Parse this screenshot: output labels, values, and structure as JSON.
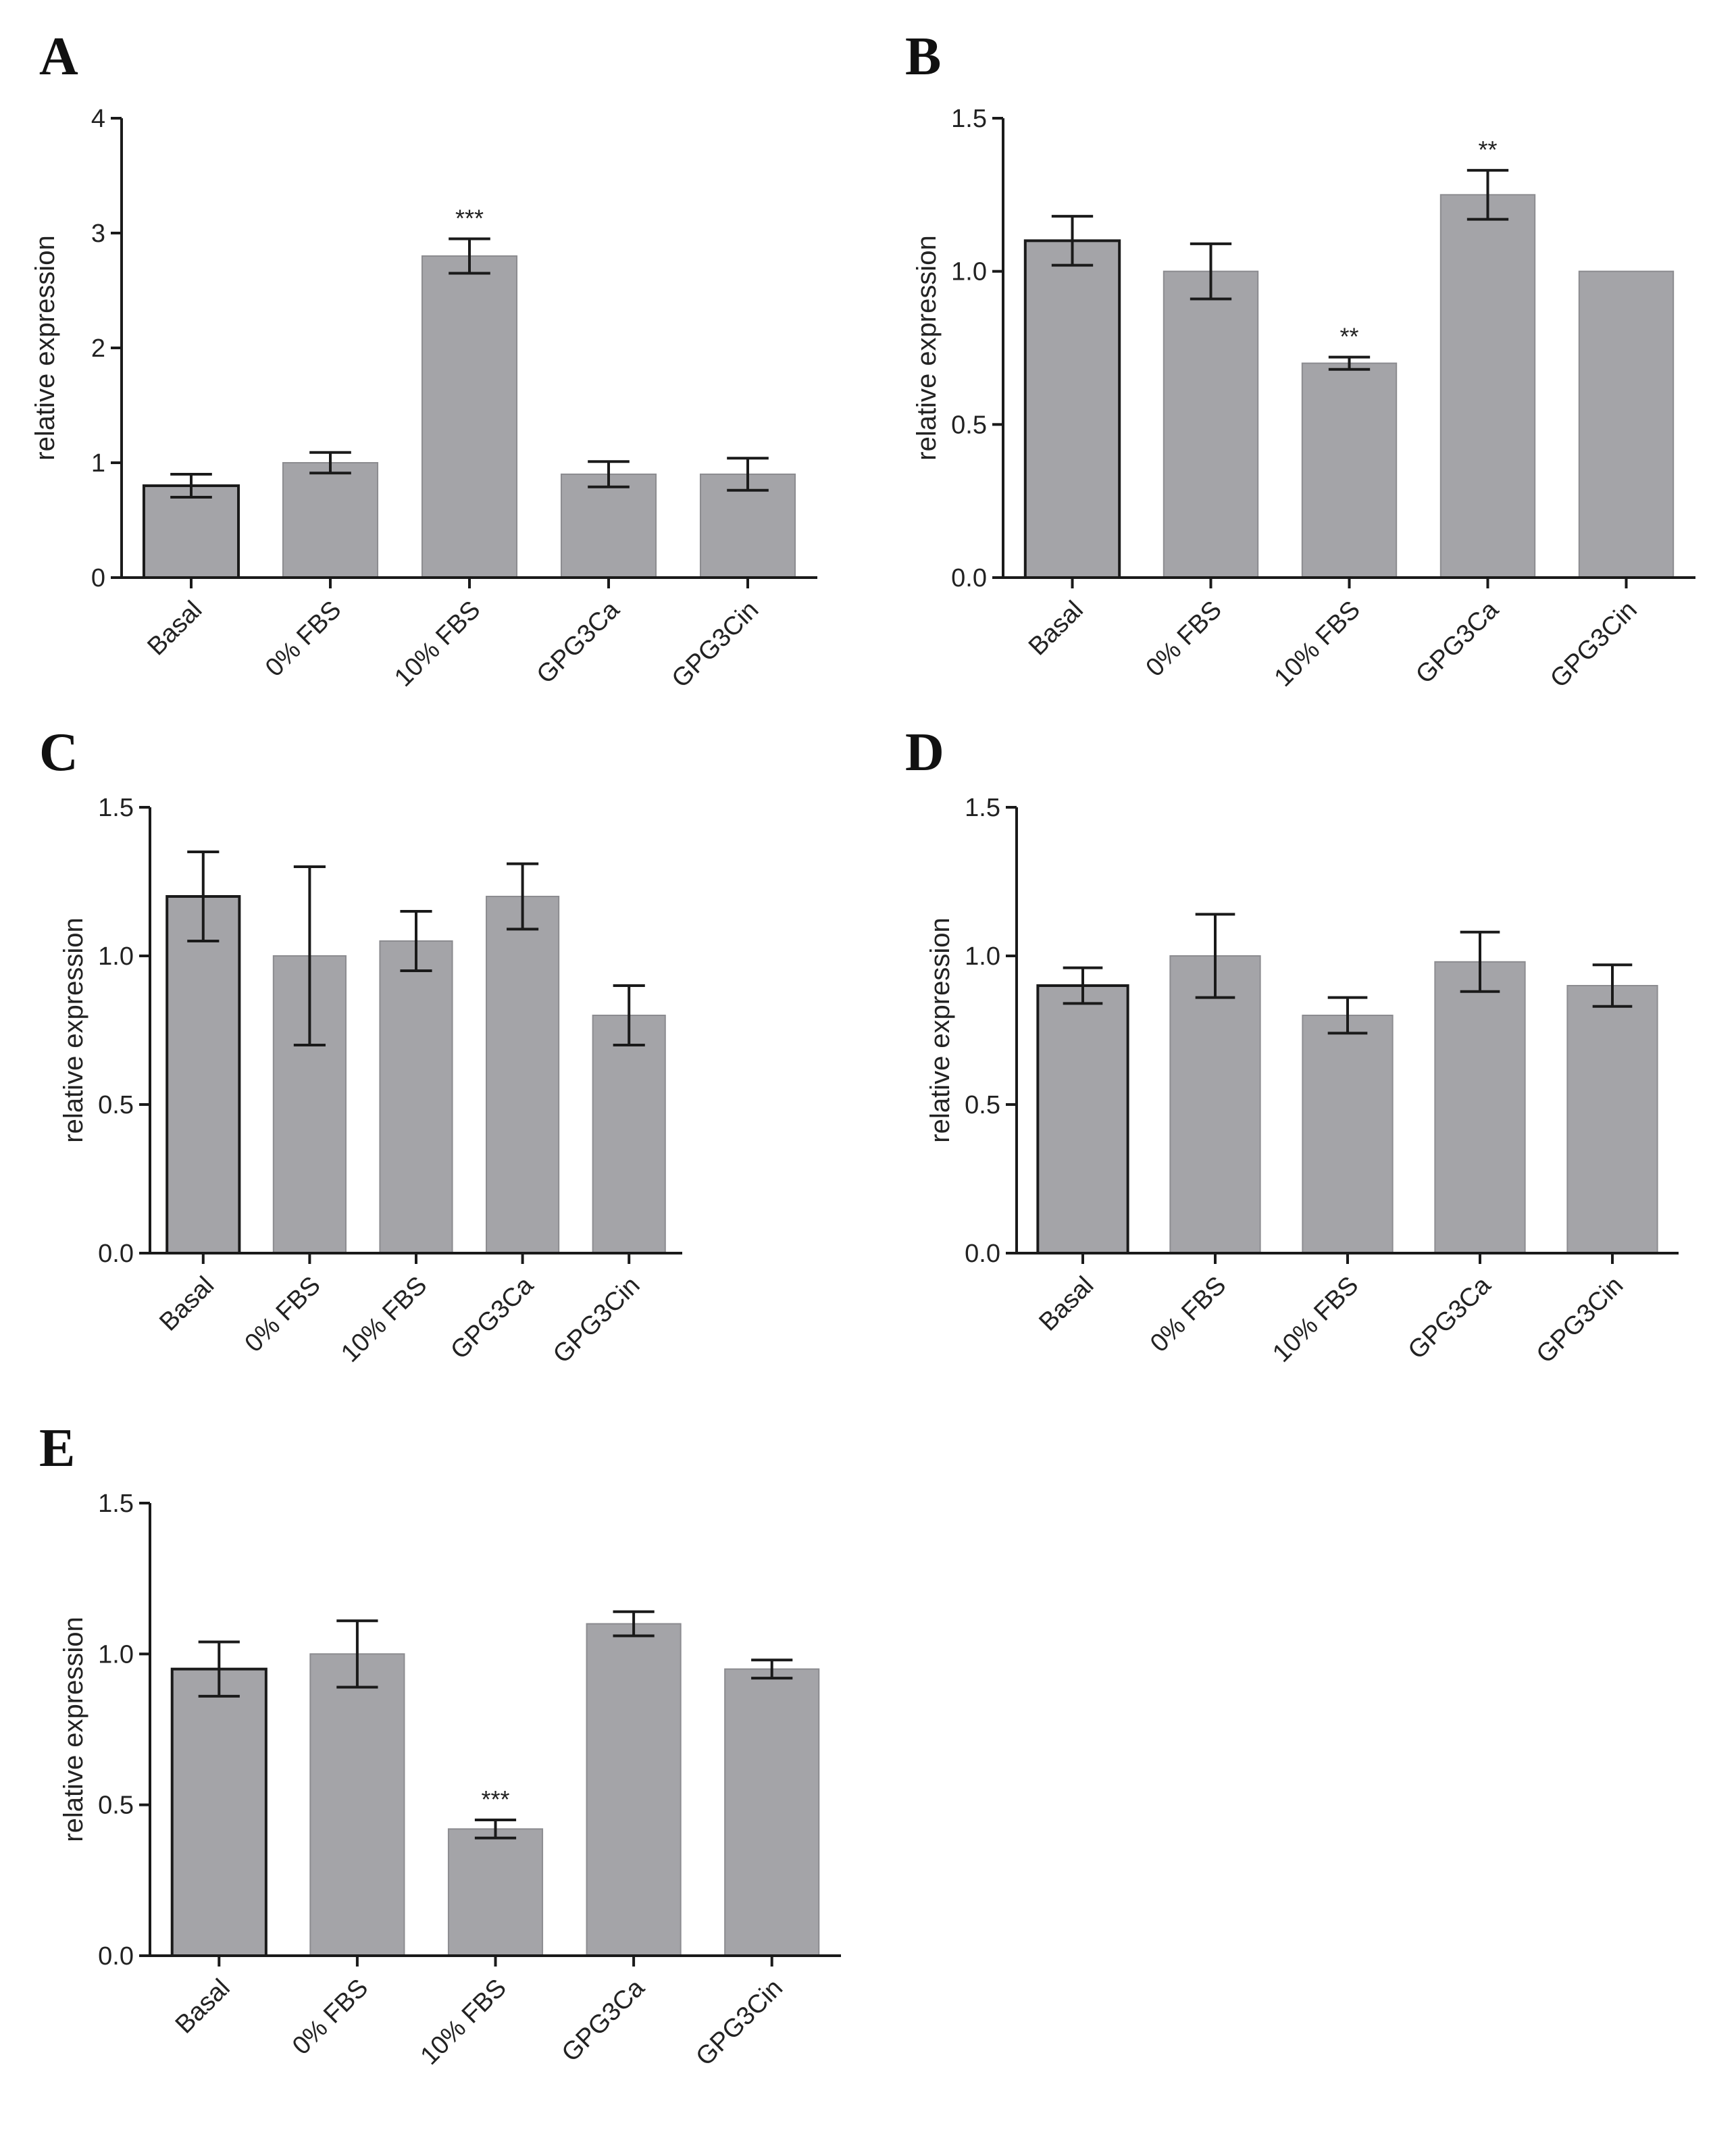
{
  "chart_data": [
    {
      "panel": "A",
      "type": "bar",
      "categories": [
        "Basal",
        "0% FBS",
        "10% FBS",
        "GPG3Ca",
        "GPG3Cin"
      ],
      "values": [
        0.8,
        1.0,
        2.8,
        0.9,
        0.9
      ],
      "errors": [
        0.1,
        0.09,
        0.15,
        0.11,
        0.14
      ],
      "annotations": [
        "",
        "",
        "***",
        "",
        ""
      ],
      "ylabel": "relative expression",
      "ylim": [
        0,
        4
      ],
      "yticks": [
        "0",
        "1",
        "2",
        "3",
        "4"
      ],
      "ytick_values": [
        0,
        1,
        2,
        3,
        4
      ]
    },
    {
      "panel": "B",
      "type": "bar",
      "categories": [
        "Basal",
        "0% FBS",
        "10% FBS",
        "GPG3Ca",
        "GPG3Cin"
      ],
      "values": [
        1.1,
        1.0,
        0.7,
        1.25,
        1.0
      ],
      "errors": [
        0.08,
        0.09,
        0.02,
        0.08,
        0
      ],
      "annotations": [
        "",
        "",
        "**",
        "**",
        ""
      ],
      "ylabel": "relative expression",
      "ylim": [
        0,
        1.5
      ],
      "yticks": [
        "0.0",
        "0.5",
        "1.0",
        "1.5"
      ],
      "ytick_values": [
        0,
        0.5,
        1.0,
        1.5
      ]
    },
    {
      "panel": "C",
      "type": "bar",
      "categories": [
        "Basal",
        "0% FBS",
        "10% FBS",
        "GPG3Ca",
        "GPG3Cin"
      ],
      "values": [
        1.2,
        1.0,
        1.05,
        1.2,
        0.8
      ],
      "errors": [
        0.15,
        0.3,
        0.1,
        0.11,
        0.1
      ],
      "annotations": [
        "",
        "",
        "",
        "",
        ""
      ],
      "ylabel": "relative expression",
      "ylim": [
        0,
        1.5
      ],
      "yticks": [
        "0.0",
        "0.5",
        "1.0",
        "1.5"
      ],
      "ytick_values": [
        0,
        0.5,
        1.0,
        1.5
      ]
    },
    {
      "panel": "D",
      "type": "bar",
      "categories": [
        "Basal",
        "0% FBS",
        "10% FBS",
        "GPG3Ca",
        "GPG3Cin"
      ],
      "values": [
        0.9,
        1.0,
        0.8,
        0.98,
        0.9
      ],
      "errors": [
        0.06,
        0.14,
        0.06,
        0.1,
        0.07
      ],
      "annotations": [
        "",
        "",
        "",
        "",
        ""
      ],
      "ylabel": "relative expression",
      "ylim": [
        0,
        1.5
      ],
      "yticks": [
        "0.0",
        "0.5",
        "1.0",
        "1.5"
      ],
      "ytick_values": [
        0,
        0.5,
        1.0,
        1.5
      ]
    },
    {
      "panel": "E",
      "type": "bar",
      "categories": [
        "Basal",
        "0% FBS",
        "10% FBS",
        "GPG3Ca",
        "GPG3Cin"
      ],
      "values": [
        0.95,
        1.0,
        0.42,
        1.1,
        0.95
      ],
      "errors": [
        0.09,
        0.11,
        0.03,
        0.04,
        0.03
      ],
      "annotations": [
        "",
        "",
        "***",
        "",
        ""
      ],
      "ylabel": "relative expression",
      "ylim": [
        0,
        1.5
      ],
      "yticks": [
        "0.0",
        "0.5",
        "1.0",
        "1.5"
      ],
      "ytick_values": [
        0,
        0.5,
        1.0,
        1.5
      ]
    }
  ],
  "colors": {
    "bar_fill": "#a4a4a8",
    "bar_stroke_first": "#1a1a1a",
    "bar_stroke": "#8c8c90",
    "axis": "#1a1a1a",
    "error_bar": "#1a1a1a"
  }
}
